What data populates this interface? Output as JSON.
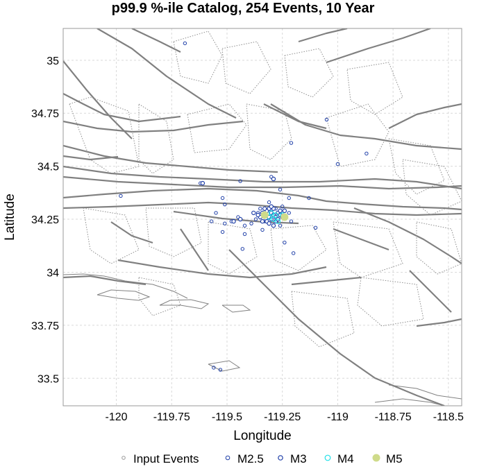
{
  "chart_data": {
    "type": "scatter",
    "title": "p99.9 %-ile Catalog, 254 Events, 10 Year",
    "xlabel": "Longitude",
    "ylabel": "Latitude",
    "xlim": [
      -120.24,
      -118.44
    ],
    "ylim": [
      33.37,
      35.15
    ],
    "grid": true,
    "legend_position": "bottom",
    "x_ticks": [
      {
        "value": -120,
        "label": "-120"
      },
      {
        "value": -119.75,
        "label": "-119.75"
      },
      {
        "value": -119.5,
        "label": "-119.5"
      },
      {
        "value": -119.25,
        "label": "-119.25"
      },
      {
        "value": -119,
        "label": "-119"
      },
      {
        "value": -118.75,
        "label": "-118.75"
      },
      {
        "value": -118.5,
        "label": "-118.5"
      }
    ],
    "y_ticks": [
      {
        "value": 35,
        "label": "35"
      },
      {
        "value": 34.75,
        "label": "34.75"
      },
      {
        "value": 34.5,
        "label": "34.5"
      },
      {
        "value": 34.25,
        "label": "34.25"
      },
      {
        "value": 34,
        "label": "34"
      },
      {
        "value": 33.75,
        "label": "33.75"
      },
      {
        "value": 33.5,
        "label": "33.5"
      }
    ],
    "colors": {
      "input": "#999999",
      "m25": "#1f3fa8",
      "m3": "#1f3fa8",
      "m4": "#22e0e8",
      "m5": "#cfdb8a",
      "fault": "#808080",
      "fault_dotted": "#8c8c8c",
      "coast": "#808080",
      "grid": "#d9d9d9"
    },
    "series": [
      {
        "name": "Input Events",
        "points": []
      },
      {
        "name": "M2.5",
        "points": [
          [
            -119.69,
            35.08
          ],
          [
            -119.05,
            34.72
          ],
          [
            -119.21,
            34.61
          ],
          [
            -118.87,
            34.56
          ],
          [
            -119.0,
            34.51
          ],
          [
            -119.62,
            34.42
          ],
          [
            -119.44,
            34.43
          ],
          [
            -119.3,
            34.45
          ],
          [
            -119.98,
            34.36
          ],
          [
            -119.26,
            34.39
          ],
          [
            -119.52,
            34.35
          ],
          [
            -119.51,
            34.32
          ],
          [
            -119.36,
            34.28
          ],
          [
            -119.31,
            34.33
          ],
          [
            -119.28,
            34.3
          ],
          [
            -119.25,
            34.31
          ],
          [
            -119.37,
            34.25
          ],
          [
            -119.45,
            34.26
          ],
          [
            -119.48,
            34.24
          ],
          [
            -119.51,
            34.23
          ],
          [
            -119.52,
            34.19
          ],
          [
            -119.42,
            34.18
          ],
          [
            -119.43,
            34.11
          ],
          [
            -119.42,
            34.22
          ],
          [
            -119.34,
            34.2
          ],
          [
            -119.22,
            34.35
          ],
          [
            -119.24,
            34.14
          ],
          [
            -119.2,
            34.09
          ],
          [
            -119.13,
            34.35
          ],
          [
            -119.1,
            34.21
          ],
          [
            -119.33,
            34.24
          ],
          [
            -119.35,
            34.3
          ],
          [
            -119.21,
            34.24
          ],
          [
            -119.26,
            34.22
          ],
          [
            -119.55,
            34.28
          ],
          [
            -119.57,
            34.24
          ],
          [
            -119.39,
            34.23
          ],
          [
            -119.22,
            34.28
          ],
          [
            -119.56,
            33.55
          ],
          [
            -119.53,
            33.54
          ]
        ]
      },
      {
        "name": "M3",
        "points": [
          [
            -119.29,
            34.44
          ],
          [
            -119.34,
            34.28
          ],
          [
            -119.33,
            34.27
          ],
          [
            -119.32,
            34.29
          ],
          [
            -119.31,
            34.26
          ],
          [
            -119.3,
            34.28
          ],
          [
            -119.29,
            34.27
          ],
          [
            -119.28,
            34.26
          ],
          [
            -119.27,
            34.28
          ],
          [
            -119.26,
            34.27
          ],
          [
            -119.3,
            34.25
          ],
          [
            -119.28,
            34.24
          ],
          [
            -119.35,
            34.26
          ],
          [
            -119.33,
            34.3
          ],
          [
            -119.31,
            34.3
          ],
          [
            -119.32,
            34.24
          ],
          [
            -119.29,
            34.3
          ],
          [
            -119.27,
            34.25
          ],
          [
            -119.25,
            34.26
          ],
          [
            -119.36,
            34.27
          ],
          [
            -119.3,
            34.31
          ],
          [
            -119.34,
            34.24
          ],
          [
            -119.29,
            34.22
          ],
          [
            -119.24,
            34.29
          ],
          [
            -119.61,
            34.42
          ],
          [
            -119.47,
            34.24
          ],
          [
            -119.44,
            34.25
          ],
          [
            -119.26,
            34.29
          ],
          [
            -119.38,
            34.28
          ],
          [
            -119.31,
            34.23
          ]
        ]
      },
      {
        "name": "M4",
        "points": [
          [
            -119.31,
            34.26
          ],
          [
            -119.28,
            34.27
          ],
          [
            -119.29,
            34.25
          ],
          [
            -119.33,
            34.27
          ],
          [
            -119.27,
            34.24
          ],
          [
            -119.3,
            34.28
          ],
          [
            -119.25,
            34.27
          ]
        ]
      },
      {
        "name": "M5",
        "points": [
          [
            -119.33,
            34.27
          ],
          [
            -119.24,
            34.26
          ]
        ]
      }
    ],
    "legend": [
      {
        "label": "Input Events",
        "marker": "input"
      },
      {
        "label": "M2.5",
        "marker": "m25"
      },
      {
        "label": "M3",
        "marker": "m3"
      },
      {
        "label": "M4",
        "marker": "m4"
      },
      {
        "label": "M5",
        "marker": "m5"
      }
    ]
  }
}
